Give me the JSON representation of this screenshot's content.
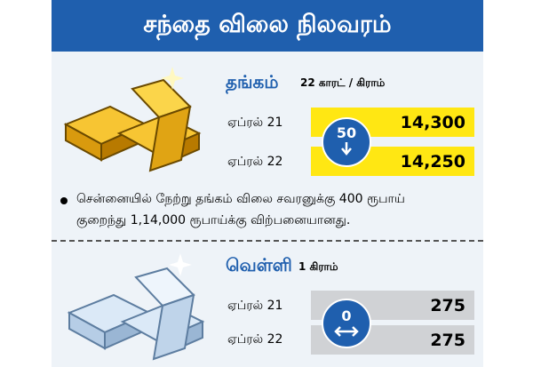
{
  "header": {
    "title": "சந்தை விலை நிலவரம்"
  },
  "gold": {
    "name": "தங்கம்",
    "unit": "22 காரட் / கிராம்",
    "rows": [
      {
        "date": "ஏப்ரல் 21",
        "price": "14,300"
      },
      {
        "date": "ஏப்ரல் 22",
        "price": "14,250"
      }
    ],
    "change": 50,
    "note": [
      "சென்னையில் நேற்று தங்கம் விலை சவரனுக்கு 400 ரூபாய்",
      "குறைந்து 1,14,000 ரூபாய்க்கு விற்பனையானது."
    ]
  },
  "silver": {
    "name": "வெள்ளி",
    "unit": "1 கிராம்",
    "rows": [
      {
        "date": "ஏப்ரல் 21",
        "price": "275"
      },
      {
        "date": "ஏப்ரல் 22",
        "price": "275"
      }
    ],
    "change": 0
  }
}
